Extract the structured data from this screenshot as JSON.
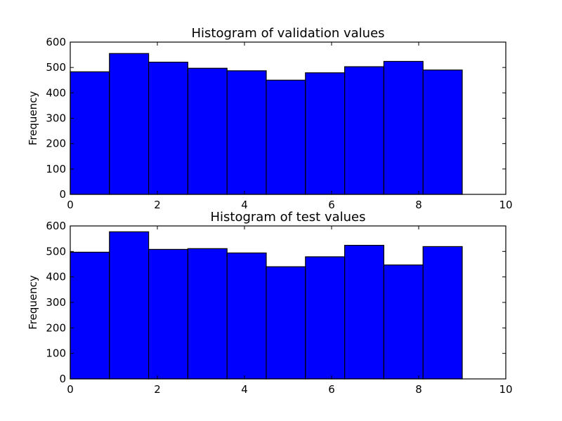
{
  "chart_data": [
    {
      "type": "bar",
      "title": "Histogram of validation values",
      "xlabel": "",
      "ylabel": "Frequency",
      "xlim": [
        0,
        10
      ],
      "ylim": [
        0,
        600
      ],
      "xticks": [
        "0",
        "2",
        "4",
        "6",
        "8",
        "10"
      ],
      "yticks": [
        "0",
        "100",
        "200",
        "300",
        "400",
        "500",
        "600"
      ],
      "bin_edges": [
        0,
        0.9,
        1.8,
        2.7,
        3.6,
        4.5,
        5.4,
        6.3,
        7.2,
        8.1,
        9.0
      ],
      "values": [
        483,
        555,
        521,
        497,
        487,
        450,
        479,
        503,
        524,
        490
      ],
      "bar_color": "#0000ff",
      "edge_color": "#000000",
      "grid": false
    },
    {
      "type": "bar",
      "title": "Histogram of test values",
      "xlabel": "",
      "ylabel": "Frequency",
      "xlim": [
        0,
        10
      ],
      "ylim": [
        0,
        600
      ],
      "xticks": [
        "0",
        "2",
        "4",
        "6",
        "8",
        "10"
      ],
      "yticks": [
        "0",
        "100",
        "200",
        "300",
        "400",
        "500",
        "600"
      ],
      "bin_edges": [
        0,
        0.9,
        1.8,
        2.7,
        3.6,
        4.5,
        5.4,
        6.3,
        7.2,
        8.1,
        9.0
      ],
      "values": [
        497,
        577,
        508,
        511,
        494,
        440,
        479,
        524,
        447,
        519
      ],
      "bar_color": "#0000ff",
      "edge_color": "#000000",
      "grid": false
    }
  ]
}
